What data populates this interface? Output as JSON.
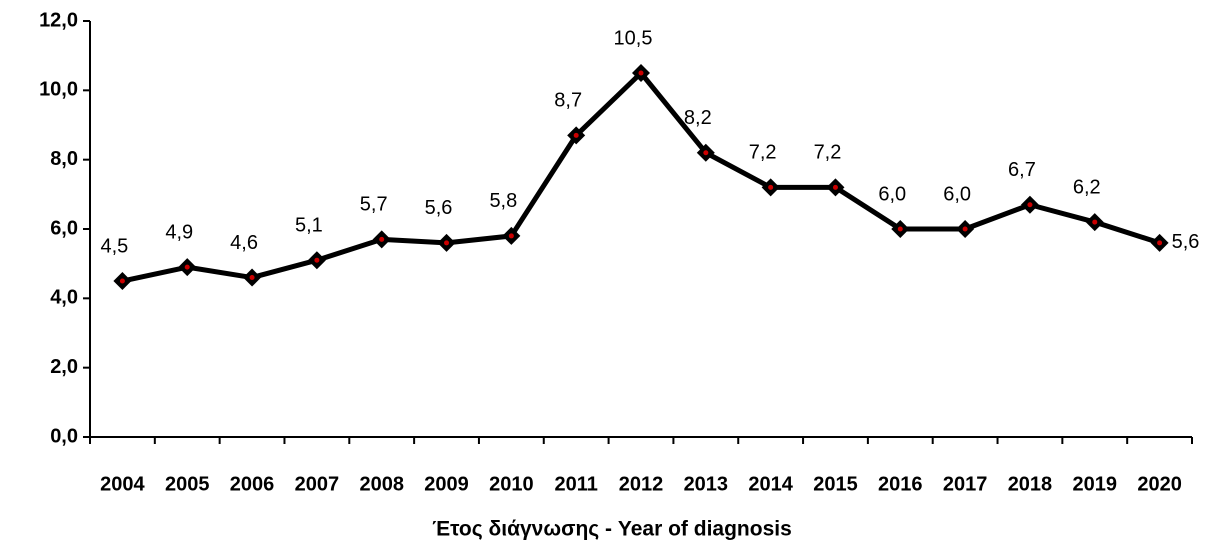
{
  "chart_data": {
    "type": "line",
    "x_label": "Έτος διάγνωσης - Year of diagnosis",
    "categories": [
      "2004",
      "2005",
      "2006",
      "2007",
      "2008",
      "2009",
      "2010",
      "2011",
      "2012",
      "2013",
      "2014",
      "2015",
      "2016",
      "2017",
      "2018",
      "2019",
      "2020"
    ],
    "series": [
      {
        "color": "#000000",
        "marker_color": "#cc0000",
        "values": [
          4.5,
          4.9,
          4.6,
          5.1,
          5.7,
          5.6,
          5.8,
          8.7,
          10.5,
          8.2,
          7.2,
          7.2,
          6.0,
          6.0,
          6.7,
          6.2,
          5.6
        ],
        "value_labels": [
          "4,5",
          "4,9",
          "4,6",
          "5,1",
          "5,7",
          "5,6",
          "5,8",
          "8,7",
          "10,5",
          "8,2",
          "7,2",
          "7,2",
          "6,0",
          "6,0",
          "6,7",
          "6,2",
          "5,6"
        ]
      }
    ],
    "ylim": [
      0,
      12
    ],
    "yticks": [
      {
        "value": 0,
        "label": "0,0"
      },
      {
        "value": 2,
        "label": "2,0"
      },
      {
        "value": 4,
        "label": "4,0"
      },
      {
        "value": 6,
        "label": "6,0"
      },
      {
        "value": 8,
        "label": "8,0"
      },
      {
        "value": 10,
        "label": "10,0"
      },
      {
        "value": 12,
        "label": "12,0"
      }
    ],
    "grid": false
  }
}
